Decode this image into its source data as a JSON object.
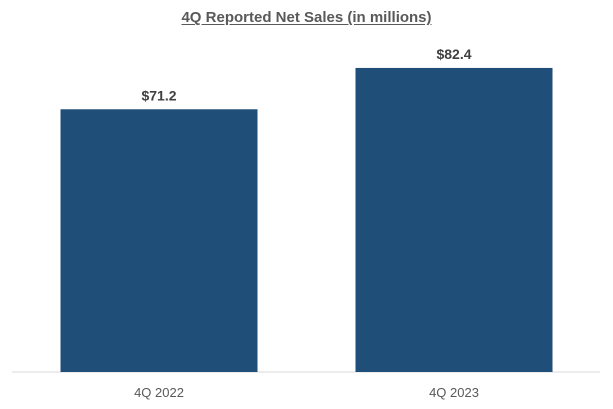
{
  "chart_data": {
    "type": "bar",
    "title": "4Q Reported Net Sales (in millions)",
    "categories": [
      "4Q 2022",
      "4Q 2023"
    ],
    "values": [
      71.2,
      82.4
    ],
    "data_labels": [
      "$71.2",
      "$82.4"
    ],
    "xlabel": "",
    "ylabel": "",
    "ylim": [
      0,
      100
    ],
    "grid": false,
    "legend": "none",
    "bar_color": "#1f4e79"
  }
}
